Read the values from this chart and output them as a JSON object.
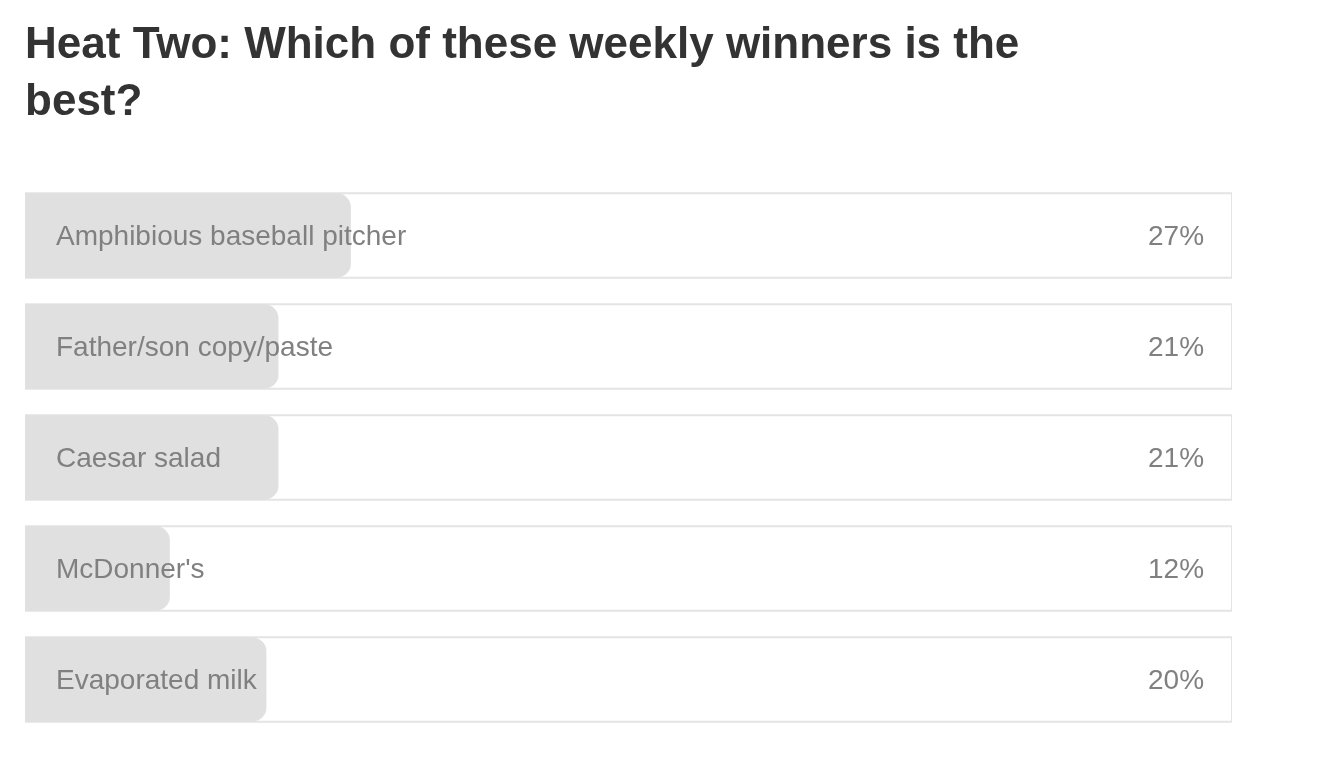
{
  "chart_data": {
    "type": "bar",
    "orientation": "horizontal",
    "title": "Heat Two: Which of these weekly winners is the best?",
    "categories": [
      "Amphibious baseball pitcher",
      "Father/son copy/paste",
      "Caesar salad",
      "McDonner's",
      "Evaporated milk"
    ],
    "values": [
      27,
      21,
      21,
      12,
      20
    ],
    "value_labels": [
      "27%",
      "21%",
      "21%",
      "12%",
      "20%"
    ],
    "color": "#e0e0e0",
    "xlim": [
      0,
      100
    ],
    "tick_labels": "y",
    "grid": false,
    "legend": false
  }
}
